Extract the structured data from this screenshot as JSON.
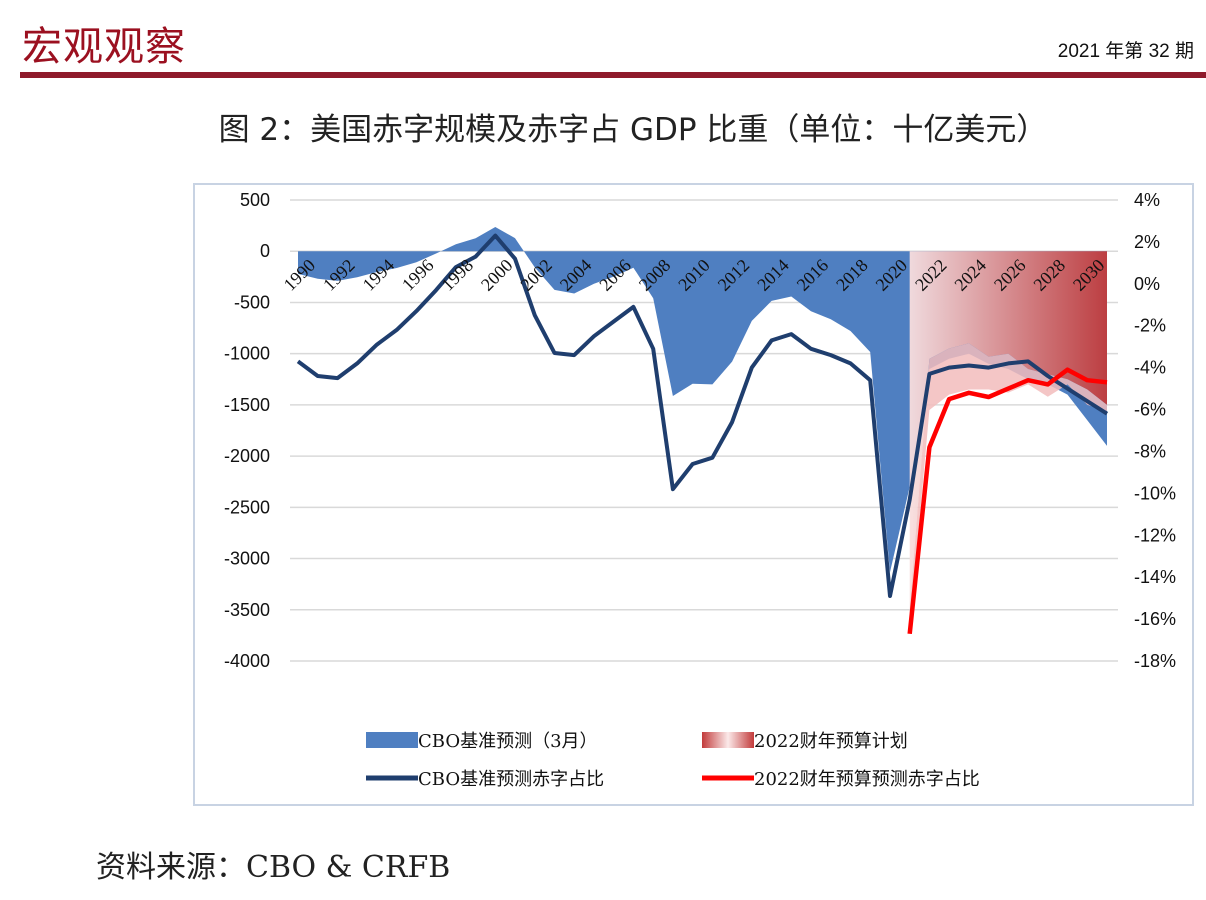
{
  "header": {
    "title": "宏观观察",
    "issue": "2021 年第 32 期"
  },
  "figure_title": "图 2：美国赤字规模及赤字占 GDP 比重（单位：十亿美元）",
  "source": "资料来源：CBO & CRFB",
  "colors": {
    "cbo_area": "#4f7fc1",
    "budget_area_from": "#f8dede",
    "budget_area_to": "#c23b3b",
    "cbo_ratio_line": "#1f3e6e",
    "budget_ratio_line": "#ff0000",
    "brand": "#9b1020"
  },
  "chart_data": {
    "type": "area+line",
    "x": [
      1990,
      1991,
      1992,
      1993,
      1994,
      1995,
      1996,
      1997,
      1998,
      1999,
      2000,
      2001,
      2002,
      2003,
      2004,
      2005,
      2006,
      2007,
      2008,
      2009,
      2010,
      2011,
      2012,
      2013,
      2014,
      2015,
      2016,
      2017,
      2018,
      2019,
      2020,
      2021,
      2022,
      2023,
      2024,
      2025,
      2026,
      2027,
      2028,
      2029,
      2030,
      2031
    ],
    "xticks": [
      "1990",
      "1992",
      "1994",
      "1996",
      "1998",
      "2000",
      "2002",
      "2004",
      "2006",
      "2008",
      "2010",
      "2012",
      "2014",
      "2016",
      "2018",
      "2020",
      "2022",
      "2024",
      "2026",
      "2028",
      "2030"
    ],
    "y_left": {
      "ylim": [
        -4000,
        500
      ],
      "ticks": [
        "500",
        "0",
        "-500",
        "-1000",
        "-1500",
        "-2000",
        "-2500",
        "-3000",
        "-3500",
        "-4000"
      ]
    },
    "y_right": {
      "ylim": [
        -18,
        4
      ],
      "ticks": [
        "4%",
        "2%",
        "0%",
        "-2%",
        "-4%",
        "-6%",
        "-8%",
        "-10%",
        "-12%",
        "-14%",
        "-16%",
        "-18%"
      ]
    },
    "series": [
      {
        "name": "CBO基准预测（3月）",
        "kind": "area",
        "axis": "left",
        "values": [
          -221,
          -269,
          -290,
          -255,
          -203,
          -164,
          -107,
          -22,
          69,
          126,
          236,
          128,
          -158,
          -378,
          -413,
          -318,
          -248,
          -161,
          -459,
          -1413,
          -1294,
          -1300,
          -1077,
          -680,
          -485,
          -442,
          -585,
          -665,
          -779,
          -984,
          -3132,
          -2300,
          -1150,
          -1050,
          -1000,
          -1100,
          -1150,
          -1250,
          -1300,
          -1400,
          -1650,
          -1900
        ]
      },
      {
        "name": "2022财年预算计划",
        "kind": "area",
        "axis": "left",
        "x": [
          2021,
          2022,
          2023,
          2024,
          2025,
          2026,
          2027,
          2028,
          2029,
          2030,
          2031
        ],
        "upper": [
          -3500,
          -1050,
          -950,
          -900,
          -1030,
          -1000,
          -1150,
          -1200,
          -1250,
          -1350,
          -1500
        ],
        "lower": [
          -3700,
          -1550,
          -1400,
          -1350,
          -1350,
          -1380,
          -1300,
          -1420,
          -1300,
          -1500,
          -1560
        ]
      },
      {
        "name": "CBO基准预测赤字占比",
        "kind": "line",
        "axis": "right",
        "values": [
          -3.7,
          -4.4,
          -4.5,
          -3.8,
          -2.9,
          -2.2,
          -1.3,
          -0.3,
          0.8,
          1.3,
          2.3,
          1.2,
          -1.5,
          -3.3,
          -3.4,
          -2.5,
          -1.8,
          -1.1,
          -3.1,
          -9.8,
          -8.6,
          -8.3,
          -6.6,
          -4.0,
          -2.7,
          -2.4,
          -3.1,
          -3.4,
          -3.8,
          -4.6,
          -14.9,
          -10.3,
          -4.3,
          -4.0,
          -3.9,
          -4.0,
          -3.8,
          -3.7,
          -4.4,
          -5.0,
          -5.6,
          -6.2
        ]
      },
      {
        "name": "2022财年预算预测赤字占比",
        "kind": "line",
        "axis": "right",
        "x": [
          2021,
          2022,
          2023,
          2024,
          2025,
          2026,
          2027,
          2028,
          2029,
          2030,
          2031
        ],
        "values": [
          -16.7,
          -7.8,
          -5.5,
          -5.2,
          -5.4,
          -5.0,
          -4.6,
          -4.8,
          -4.1,
          -4.6,
          -4.7
        ]
      }
    ],
    "legend": [
      {
        "label": "CBO基准预测（3月）",
        "type": "area"
      },
      {
        "label": "2022财年预算计划",
        "type": "area-gradient"
      },
      {
        "label": "CBO基准预测赤字占比",
        "type": "line"
      },
      {
        "label": "2022财年预算预测赤字占比",
        "type": "line"
      }
    ],
    "grid": true,
    "legend_position": "bottom"
  }
}
